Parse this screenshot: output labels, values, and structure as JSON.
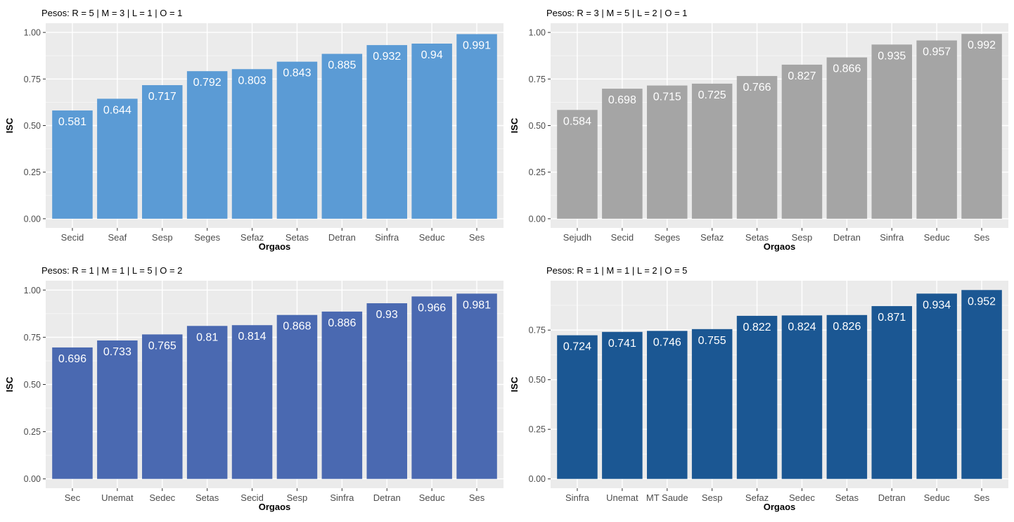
{
  "chart_data": [
    {
      "type": "bar",
      "title": "Pesos: R = 5 | M = 3 | L = 1 | O = 1",
      "xlabel": "Orgaos",
      "ylabel": "ISC",
      "categories": [
        "Secid",
        "Seaf",
        "Sesp",
        "Seges",
        "Sefaz",
        "Setas",
        "Detran",
        "Sinfra",
        "Seduc",
        "Ses"
      ],
      "values": [
        0.581,
        0.644,
        0.717,
        0.792,
        0.803,
        0.843,
        0.885,
        0.932,
        0.94,
        0.991
      ],
      "value_labels": [
        "0.581",
        "0.644",
        "0.717",
        "0.792",
        "0.803",
        "0.843",
        "0.885",
        "0.932",
        "0.94",
        "0.991"
      ],
      "ylim": [
        0,
        1
      ],
      "yticks": [
        0,
        0.25,
        0.5,
        0.75,
        1
      ],
      "ytick_labels": [
        "0.00",
        "0.25",
        "0.50",
        "0.75",
        "1.00"
      ],
      "bar_color": "#5B9BD5",
      "grid": true
    },
    {
      "type": "bar",
      "title": "Pesos: R = 3 | M = 5 | L = 2 | O = 1",
      "xlabel": "Orgaos",
      "ylabel": "ISC",
      "categories": [
        "Sejudh",
        "Secid",
        "Seges",
        "Sefaz",
        "Setas",
        "Sesp",
        "Detran",
        "Sinfra",
        "Seduc",
        "Ses"
      ],
      "values": [
        0.584,
        0.698,
        0.715,
        0.725,
        0.766,
        0.827,
        0.866,
        0.935,
        0.957,
        0.992
      ],
      "value_labels": [
        "0.584",
        "0.698",
        "0.715",
        "0.725",
        "0.766",
        "0.827",
        "0.866",
        "0.935",
        "0.957",
        "0.992"
      ],
      "ylim": [
        0,
        1
      ],
      "yticks": [
        0,
        0.25,
        0.5,
        0.75,
        1
      ],
      "ytick_labels": [
        "0.00",
        "0.25",
        "0.50",
        "0.75",
        "1.00"
      ],
      "bar_color": "#A5A5A5",
      "grid": true
    },
    {
      "type": "bar",
      "title": "Pesos: R = 1 | M = 1 | L = 5 | O = 2",
      "xlabel": "Orgaos",
      "ylabel": "ISC",
      "categories": [
        "Sec",
        "Unemat",
        "Sedec",
        "Setas",
        "Secid",
        "Sesp",
        "Sinfra",
        "Detran",
        "Seduc",
        "Ses"
      ],
      "values": [
        0.696,
        0.733,
        0.765,
        0.81,
        0.814,
        0.868,
        0.886,
        0.93,
        0.966,
        0.981
      ],
      "value_labels": [
        "0.696",
        "0.733",
        "0.765",
        "0.81",
        "0.814",
        "0.868",
        "0.886",
        "0.93",
        "0.966",
        "0.981"
      ],
      "ylim": [
        0,
        1
      ],
      "yticks": [
        0,
        0.25,
        0.5,
        0.75,
        1
      ],
      "ytick_labels": [
        "0.00",
        "0.25",
        "0.50",
        "0.75",
        "1.00"
      ],
      "bar_color": "#4A69B1",
      "grid": true
    },
    {
      "type": "bar",
      "title": "Pesos: R = 1 | M = 1 | L = 2 | O = 5",
      "xlabel": "Orgaos",
      "ylabel": "ISC",
      "categories": [
        "Sinfra",
        "Unemat",
        "MT Saude",
        "Sesp",
        "Sefaz",
        "Sedec",
        "Setas",
        "Detran",
        "Seduc",
        "Ses"
      ],
      "values": [
        0.724,
        0.741,
        0.746,
        0.755,
        0.822,
        0.824,
        0.826,
        0.871,
        0.934,
        0.952
      ],
      "value_labels": [
        "0.724",
        "0.741",
        "0.746",
        "0.755",
        "0.822",
        "0.824",
        "0.826",
        "0.871",
        "0.934",
        "0.952"
      ],
      "ylim": [
        0,
        0.952
      ],
      "yticks": [
        0,
        0.25,
        0.5,
        0.75
      ],
      "ytick_labels": [
        "0.00",
        "0.25",
        "0.50",
        "0.75"
      ],
      "bar_color": "#1B5793",
      "grid": true
    }
  ]
}
